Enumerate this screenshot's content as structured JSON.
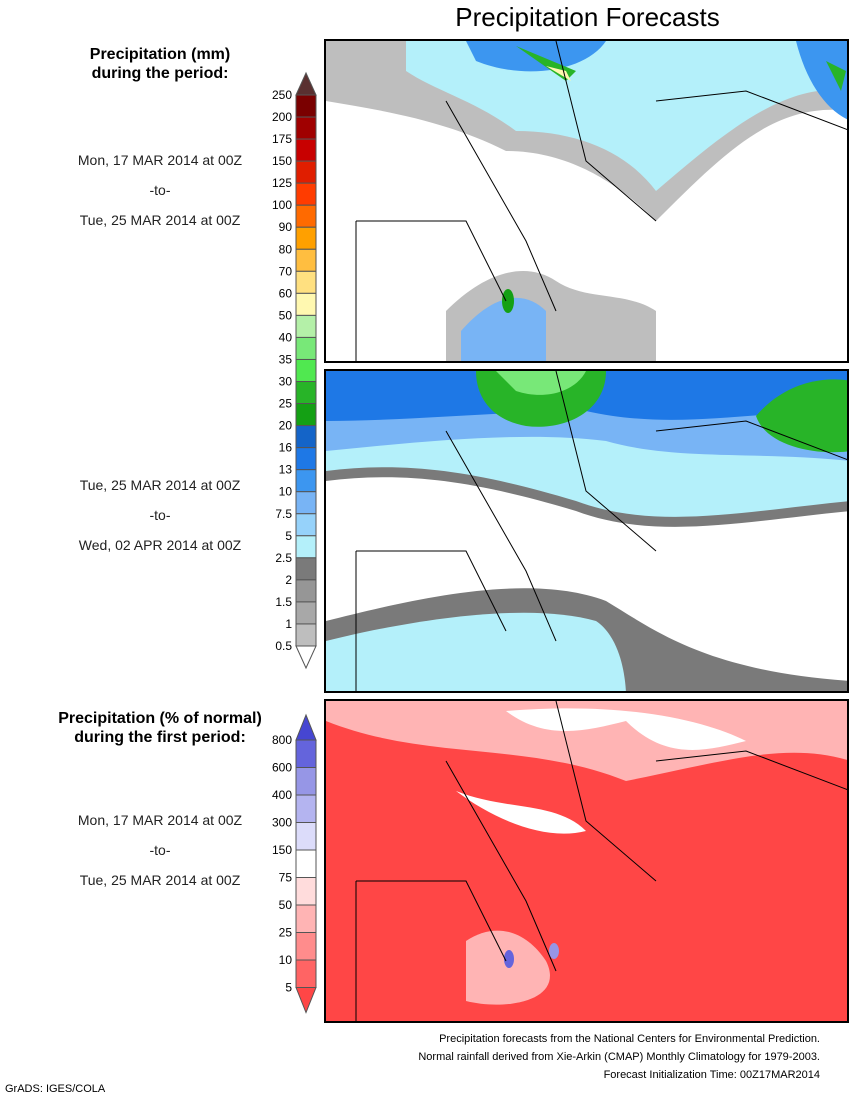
{
  "title": "Precipitation Forecasts",
  "legend1": {
    "heading1": "Precipitation (mm)",
    "heading2": "during the period:",
    "ticks": [
      "250",
      "200",
      "175",
      "150",
      "125",
      "100",
      "90",
      "80",
      "70",
      "60",
      "50",
      "40",
      "35",
      "30",
      "25",
      "20",
      "16",
      "13",
      "10",
      "7.5",
      "5",
      "2.5",
      "2",
      "1.5",
      "1",
      "0.5"
    ],
    "colors": [
      "#7a0000",
      "#a00000",
      "#c80000",
      "#e01e00",
      "#ff3c00",
      "#ff6a00",
      "#ffa000",
      "#ffbe40",
      "#ffe080",
      "#fff8b0",
      "#b4f0a8",
      "#78e878",
      "#50e850",
      "#28b428",
      "#14a014",
      "#1464c8",
      "#1e78e6",
      "#3c96f0",
      "#78b4f5",
      "#96d2fa",
      "#b4f0fa",
      "#7a7a7a",
      "#969696",
      "#a8a8a8",
      "#bebebe"
    ],
    "top_color": "#5a3030"
  },
  "period1": {
    "start": "Mon, 17 MAR 2014 at 00Z",
    "sep": "-to-",
    "end": "Tue, 25 MAR 2014 at 00Z"
  },
  "period2": {
    "start": "Tue, 25 MAR 2014 at 00Z",
    "sep": "-to-",
    "end": "Wed, 02 APR 2014 at 00Z"
  },
  "legend2": {
    "heading1": "Precipitation (% of normal)",
    "heading2": "during the first period:",
    "ticks": [
      "800",
      "600",
      "400",
      "300",
      "150",
      "75",
      "50",
      "25",
      "10",
      "5"
    ],
    "colors": [
      "#6464dc",
      "#9696e6",
      "#b4b4f0",
      "#dcdcfa",
      "#ffffff",
      "#ffdcdc",
      "#ffb4b4",
      "#ff8c8c",
      "#ff6464"
    ],
    "top_color": "#4646d2",
    "bottom_color": "#ff4646"
  },
  "period3": {
    "start": "Mon, 17 MAR 2014 at 00Z",
    "sep": "-to-",
    "end": "Tue, 25 MAR 2014 at 00Z"
  },
  "footer": {
    "line1": "Precipitation forecasts from the National Centers for Environmental Prediction.",
    "line2": "Normal rainfall derived from Xie-Arkin (CMAP) Monthly Climatology for 1979-2003.",
    "line3": "Forecast Initialization Time: 00Z17MAR2014"
  },
  "credit": "GrADS: IGES/COLA"
}
